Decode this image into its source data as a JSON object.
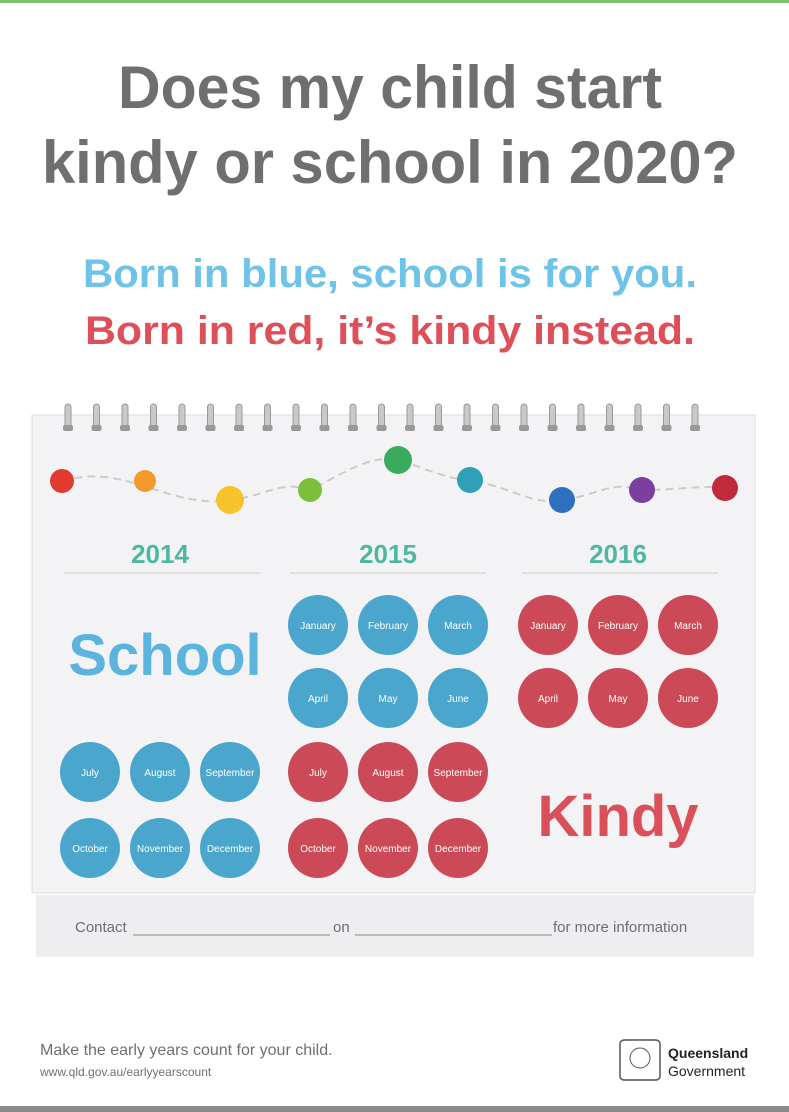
{
  "title": [
    "Does my child start",
    "kindy or school in 2020?"
  ],
  "tagline": [
    "Born in blue, school is for you.",
    "Born in red, it’s kindy instead."
  ],
  "calendar": {
    "years": [
      {
        "year": "2014",
        "label": "School",
        "label_color": "#5bb4dd",
        "months": [
          {
            "name": "July",
            "color": "#4aa6cc"
          },
          {
            "name": "August",
            "color": "#4aa6cc"
          },
          {
            "name": "September",
            "color": "#4aa6cc"
          },
          {
            "name": "October",
            "color": "#4aa6cc"
          },
          {
            "name": "November",
            "color": "#4aa6cc"
          },
          {
            "name": "December",
            "color": "#4aa6cc"
          }
        ]
      },
      {
        "year": "2015",
        "months": [
          {
            "name": "January",
            "color": "#4aa6cc"
          },
          {
            "name": "February",
            "color": "#4aa6cc"
          },
          {
            "name": "March",
            "color": "#4aa6cc"
          },
          {
            "name": "April",
            "color": "#4aa6cc"
          },
          {
            "name": "May",
            "color": "#4aa6cc"
          },
          {
            "name": "June",
            "color": "#4aa6cc"
          },
          {
            "name": "July",
            "color": "#cc4a58"
          },
          {
            "name": "August",
            "color": "#cc4a58"
          },
          {
            "name": "September",
            "color": "#cc4a58"
          },
          {
            "name": "October",
            "color": "#cc4a58"
          },
          {
            "name": "November",
            "color": "#cc4a58"
          },
          {
            "name": "December",
            "color": "#cc4a58"
          }
        ]
      },
      {
        "year": "2016",
        "label": "Kindy",
        "label_color": "#d9505b",
        "months": [
          {
            "name": "January",
            "color": "#cc4a58"
          },
          {
            "name": "February",
            "color": "#cc4a58"
          },
          {
            "name": "March",
            "color": "#cc4a58"
          },
          {
            "name": "April",
            "color": "#cc4a58"
          },
          {
            "name": "May",
            "color": "#cc4a58"
          },
          {
            "name": "June",
            "color": "#cc4a58"
          }
        ]
      }
    ]
  },
  "contact": [
    "Contact",
    "on",
    "for more information"
  ],
  "footer": {
    "slogan": "Make the early years count for your child.",
    "url": "www.qld.gov.au/earlyyearscount",
    "logo": [
      "Queensland",
      "Government"
    ]
  }
}
